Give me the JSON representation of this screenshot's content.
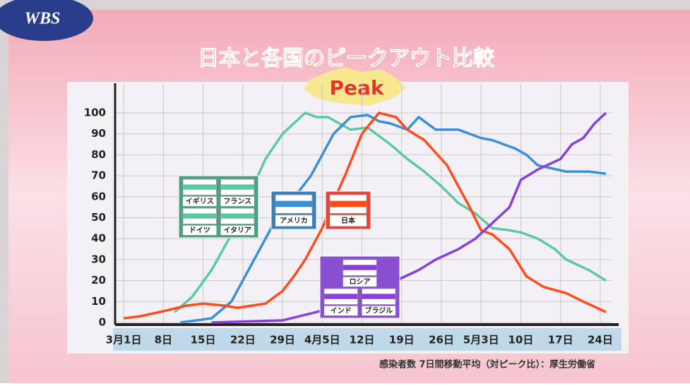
{
  "logo": "WBS",
  "chart_data": {
    "type": "line",
    "title": "日本と各国のピークアウト比較",
    "subtitle": "Peak",
    "source": "感染者数 7日間移動平均（対ピーク比）：厚生労働省",
    "xlim": [
      -1.5,
      86
    ],
    "xticks": [
      {
        "value": 0,
        "label": "3月1日"
      },
      {
        "value": 7,
        "label": "8日"
      },
      {
        "value": 14,
        "label": "15日"
      },
      {
        "value": 21,
        "label": "22日"
      },
      {
        "value": 28,
        "label": "29日"
      },
      {
        "value": 35,
        "label": "4月5日"
      },
      {
        "value": 42,
        "label": "12日"
      },
      {
        "value": 49,
        "label": "19日"
      },
      {
        "value": 56,
        "label": "26日"
      },
      {
        "value": 63,
        "label": "5月3日"
      },
      {
        "value": 70,
        "label": "10日"
      },
      {
        "value": 77,
        "label": "17日"
      },
      {
        "value": 84,
        "label": "24日"
      }
    ],
    "ylim": [
      0,
      100
    ],
    "yticks": [
      0,
      10,
      20,
      30,
      40,
      50,
      60,
      70,
      80,
      90,
      100
    ],
    "grid": true,
    "series": [
      {
        "labels": [
          "イギリス",
          "フランス",
          "ドイツ",
          "イタリア"
        ],
        "color": "#5ccaa0",
        "x": [
          9,
          12,
          15.5,
          19,
          22,
          25,
          28,
          32,
          34,
          36,
          38,
          40,
          43,
          47,
          50,
          53,
          56,
          59,
          62,
          65,
          68,
          70,
          73,
          76,
          78,
          82,
          85
        ],
        "values": [
          5,
          12,
          25,
          42,
          60,
          78,
          90,
          100,
          98,
          98,
          95,
          92,
          93,
          85,
          78,
          72,
          65,
          57,
          52,
          45,
          44,
          43,
          40,
          35,
          30,
          25,
          20
        ]
      },
      {
        "labels": [
          "アメリカ"
        ],
        "color": "#3a8fd6",
        "x": [
          10,
          15.5,
          19,
          21,
          23,
          26,
          28,
          31,
          33,
          35,
          37,
          40,
          43,
          45,
          47,
          50,
          52,
          55,
          59,
          61,
          63,
          65,
          69,
          71,
          73,
          78,
          82,
          85
        ],
        "values": [
          0,
          2,
          10,
          20,
          30,
          45,
          55,
          63,
          70,
          80,
          90,
          98,
          99,
          96,
          95,
          92,
          98,
          92,
          92,
          90,
          88,
          87,
          83,
          80,
          75,
          72,
          72,
          71
        ]
      },
      {
        "labels": [
          "日本"
        ],
        "color": "#ff4a1c",
        "x": [
          0,
          3,
          8,
          11,
          14,
          18,
          20,
          25,
          28,
          30,
          32,
          35,
          37,
          39,
          42,
          45,
          48,
          50,
          53,
          57,
          59,
          61,
          63,
          65,
          68,
          71,
          74,
          78,
          81,
          85
        ],
        "values": [
          2,
          3,
          6,
          8,
          9,
          8,
          7,
          9,
          15,
          22,
          30,
          45,
          58,
          70,
          90,
          100,
          98,
          92,
          87,
          75,
          65,
          55,
          44,
          42,
          35,
          22,
          17,
          14,
          10,
          5
        ]
      },
      {
        "labels": [
          "ロシア",
          "インド",
          "ブラジル"
        ],
        "color": "#8a3fd8",
        "x": [
          15.5,
          28,
          34,
          40,
          44,
          48,
          52,
          55,
          59,
          62,
          64,
          66,
          68,
          70,
          73,
          77,
          79,
          81,
          83,
          85
        ],
        "values": [
          0,
          1,
          5,
          10,
          15,
          20,
          25,
          30,
          35,
          40,
          45,
          50,
          55,
          68,
          73,
          78,
          85,
          88,
          95,
          100
        ]
      }
    ]
  }
}
